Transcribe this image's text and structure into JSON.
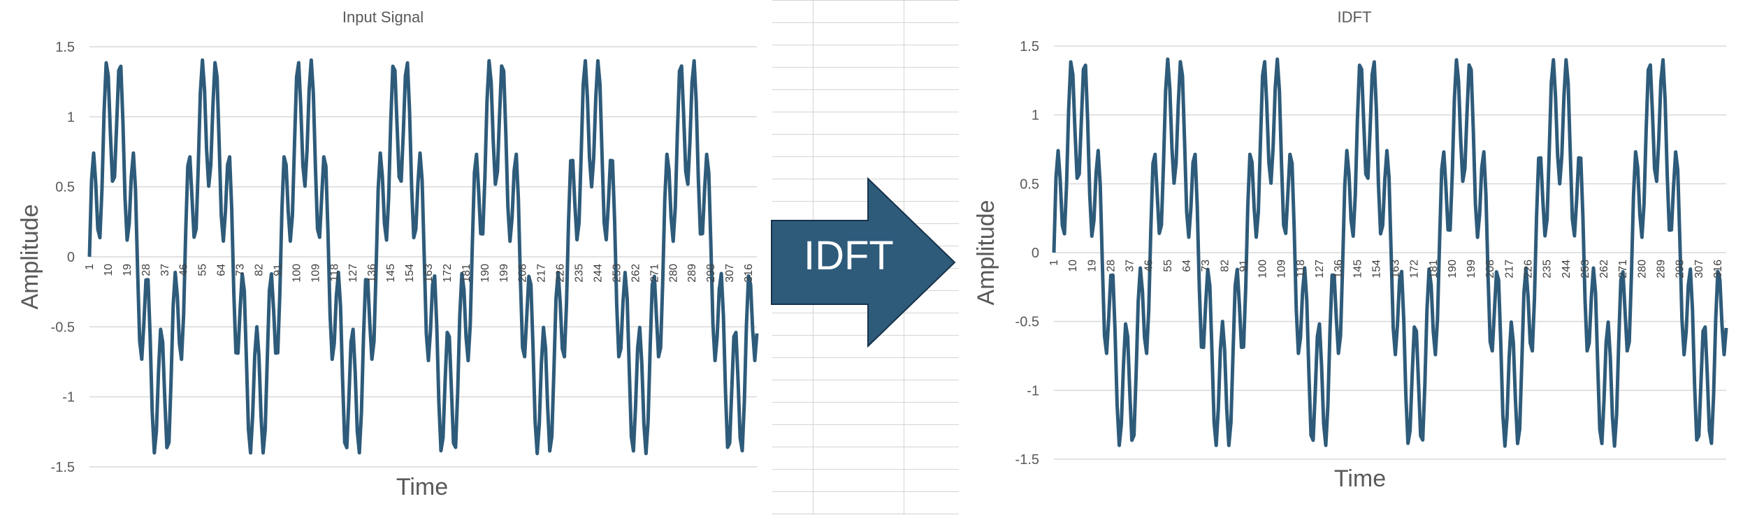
{
  "colors": {
    "series": "#2e5b7a",
    "gridline": "#d9d9d9",
    "text": "#595959",
    "arrow_fill": "#2e5b7a",
    "arrow_stroke": "#17324a"
  },
  "arrow": {
    "label": "IDFT",
    "icon": "right-arrow-shape-icon"
  },
  "chart_data": [
    {
      "type": "line",
      "title": "Input Signal",
      "xlabel": "Time",
      "ylabel": "Amplitude",
      "ylim": [
        -1.5,
        1.5
      ],
      "yticks": [
        "1.5",
        "1",
        "0.5",
        "0",
        "-0.5",
        "-1",
        "-1.5"
      ],
      "x_range": [
        1,
        320
      ],
      "xtick_labels": [
        "1",
        "10",
        "19",
        "28",
        "37",
        "46",
        "55",
        "64",
        "73",
        "82",
        "91",
        "100",
        "109",
        "118",
        "127",
        "136",
        "145",
        "154",
        "163",
        "172",
        "181",
        "190",
        "199",
        "208",
        "217",
        "226",
        "235",
        "244",
        "253",
        "262",
        "271",
        "280",
        "289",
        "298",
        "307",
        "316"
      ],
      "grid": true,
      "legend": "none",
      "series": [
        {
          "signal_components": [
            {
              "amplitude": 1.0,
              "frequency_cycles": 7
            },
            {
              "amplitude": 0.5,
              "frequency_cycles": 49
            }
          ]
        }
      ]
    },
    {
      "type": "line",
      "title": "IDFT",
      "xlabel": "Time",
      "ylabel": "Amplitude",
      "ylim": [
        -1.5,
        1.5
      ],
      "yticks": [
        "1.5",
        "1",
        "0.5",
        "0",
        "-0.5",
        "-1",
        "-1.5"
      ],
      "x_range": [
        1,
        320
      ],
      "xtick_labels": [
        "1",
        "10",
        "19",
        "28",
        "37",
        "46",
        "55",
        "64",
        "73",
        "82",
        "91",
        "100",
        "109",
        "118",
        "127",
        "136",
        "145",
        "154",
        "163",
        "172",
        "181",
        "190",
        "199",
        "208",
        "217",
        "226",
        "235",
        "244",
        "253",
        "262",
        "271",
        "280",
        "289",
        "298",
        "307",
        "316"
      ],
      "grid": true,
      "legend": "none",
      "series": [
        {
          "signal_components": [
            {
              "amplitude": 1.0,
              "frequency_cycles": 7
            },
            {
              "amplitude": 0.5,
              "frequency_cycles": 49
            }
          ]
        }
      ]
    }
  ]
}
